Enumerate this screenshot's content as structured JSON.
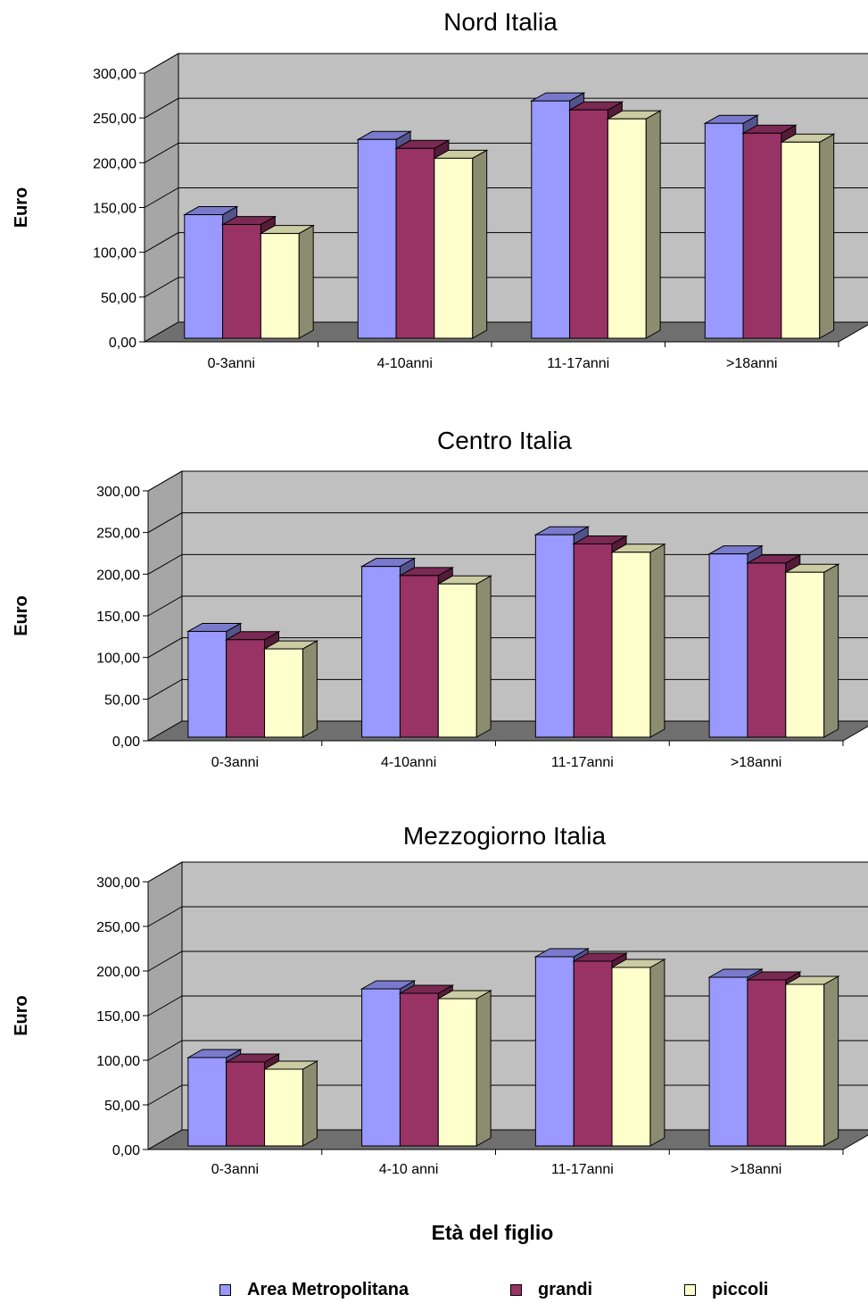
{
  "figure": {
    "xlabel": "Età del figlio",
    "legend": [
      {
        "label": "Area Metropolitana",
        "color": "#9999ff"
      },
      {
        "label": "grandi",
        "color": "#993366"
      },
      {
        "label": "piccoli",
        "color": "#ffffcc"
      }
    ]
  },
  "chart_data": [
    {
      "type": "bar",
      "title": "Nord Italia",
      "ylabel": "Euro",
      "ylim": [
        0,
        300
      ],
      "yticks": [
        "0,00",
        "50,00",
        "100,00",
        "150,00",
        "200,00",
        "250,00",
        "300,00"
      ],
      "categories": [
        "0-3anni",
        "4-10anni",
        "11-17anni",
        ">18anni"
      ],
      "series": [
        {
          "name": "Area Metropolitana",
          "values": [
            138,
            222,
            265,
            240
          ]
        },
        {
          "name": "grandi",
          "values": [
            127,
            212,
            255,
            229
          ]
        },
        {
          "name": "piccoli",
          "values": [
            117,
            201,
            245,
            219
          ]
        }
      ]
    },
    {
      "type": "bar",
      "title": "Centro Italia",
      "ylabel": "Euro",
      "ylim": [
        0,
        300
      ],
      "yticks": [
        "0,00",
        "50,00",
        "100,00",
        "150,00",
        "200,00",
        "250,00",
        "300,00"
      ],
      "categories": [
        "0-3anni",
        "4-10anni",
        "11-17anni",
        ">18anni"
      ],
      "series": [
        {
          "name": "Area Metropolitana",
          "values": [
            127,
            205,
            243,
            220
          ]
        },
        {
          "name": "grandi",
          "values": [
            117,
            194,
            232,
            209
          ]
        },
        {
          "name": "piccoli",
          "values": [
            106,
            184,
            222,
            198
          ]
        }
      ]
    },
    {
      "type": "bar",
      "title": "Mezzogiorno Italia",
      "ylabel": "Euro",
      "ylim": [
        0,
        300
      ],
      "yticks": [
        "0,00",
        "50,00",
        "100,00",
        "150,00",
        "200,00",
        "250,00",
        "300,00"
      ],
      "categories": [
        "0-3anni",
        "4-10 anni",
        "11-17anni",
        ">18anni"
      ],
      "series": [
        {
          "name": "Area Metropolitana",
          "values": [
            99,
            176,
            212,
            189
          ]
        },
        {
          "name": "grandi",
          "values": [
            94,
            171,
            207,
            186
          ]
        },
        {
          "name": "piccoli",
          "values": [
            86,
            165,
            200,
            181
          ]
        }
      ]
    }
  ]
}
